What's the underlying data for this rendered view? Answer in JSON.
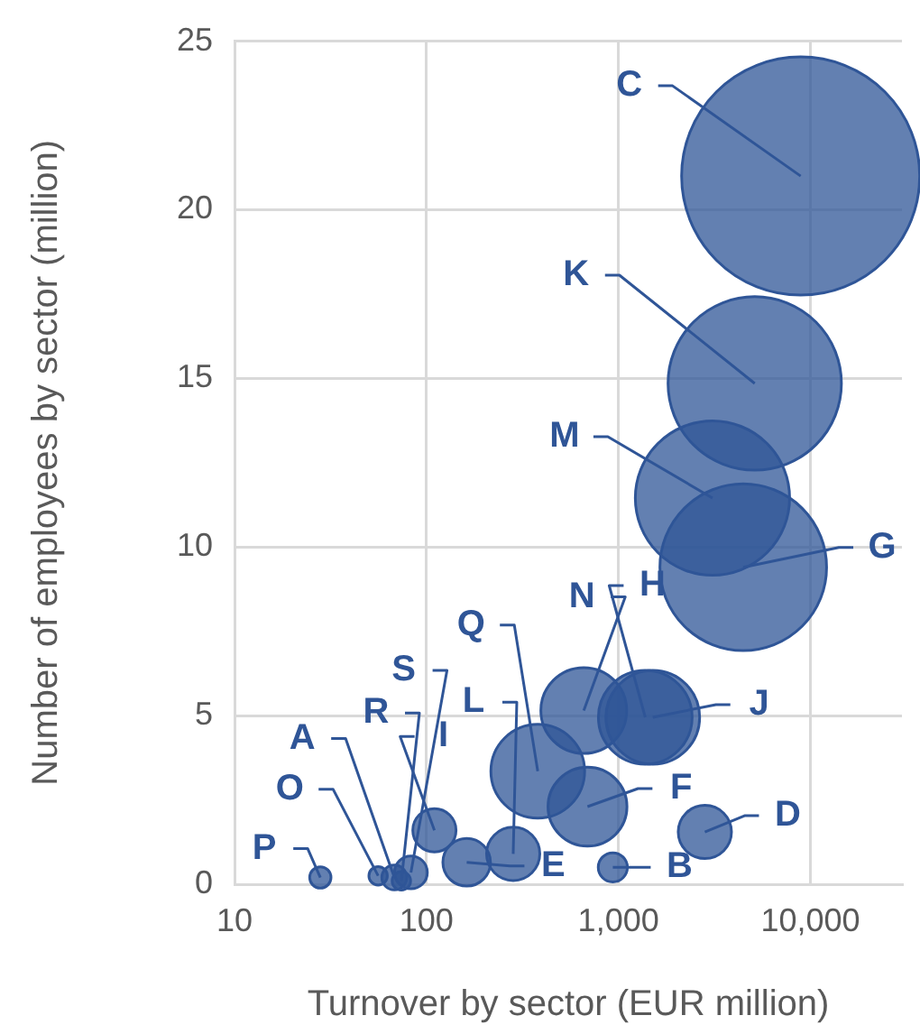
{
  "chart_data": {
    "type": "bubble",
    "xlabel": "Turnover by sector (EUR million)",
    "ylabel": "Number of employees by sector (million)",
    "x": [
      28,
      56,
      68,
      74,
      83,
      110,
      162,
      283,
      935,
      2820,
      380,
      690,
      660,
      1380,
      1510,
      4470,
      8900,
      5130,
      3090
    ],
    "series": [
      {
        "color": "#2f5597",
        "values": [
          0.2,
          0.25,
          0.2,
          0.1,
          0.35,
          1.6,
          0.65,
          0.9,
          0.5,
          1.55,
          3.35,
          2.3,
          5.15,
          4.95,
          4.95,
          9.4,
          21,
          14.85,
          11.45
        ],
        "sizes": [
          0.008,
          0.006,
          0.011,
          0.006,
          0.019,
          0.033,
          0.04,
          0.05,
          0.015,
          0.05,
          0.155,
          0.11,
          0.13,
          0.155,
          0.155,
          0.49,
          1,
          0.53,
          0.42
        ]
      }
    ],
    "annotations": [
      {
        "text": "P",
        "x": 28,
        "y": 0.2
      },
      {
        "text": "O",
        "x": 56,
        "y": 0.25
      },
      {
        "text": "A",
        "x": 68,
        "y": 0.2
      },
      {
        "text": "R",
        "x": 74,
        "y": 0.1
      },
      {
        "text": "S",
        "x": 83,
        "y": 0.35
      },
      {
        "text": "I",
        "x": 110,
        "y": 1.6
      },
      {
        "text": "E",
        "x": 162,
        "y": 0.65
      },
      {
        "text": "L",
        "x": 283,
        "y": 0.9
      },
      {
        "text": "B",
        "x": 935,
        "y": 0.5
      },
      {
        "text": "D",
        "x": 2820,
        "y": 1.55
      },
      {
        "text": "Q",
        "x": 380,
        "y": 3.35
      },
      {
        "text": "F",
        "x": 690,
        "y": 2.3
      },
      {
        "text": "N",
        "x": 660,
        "y": 5.15
      },
      {
        "text": "H",
        "x": 1380,
        "y": 4.95
      },
      {
        "text": "J",
        "x": 1510,
        "y": 4.95
      },
      {
        "text": "G",
        "x": 4470,
        "y": 9.4
      },
      {
        "text": "C",
        "x": 8900,
        "y": 21
      },
      {
        "text": "K",
        "x": 5130,
        "y": 14.85
      },
      {
        "text": "M",
        "x": 3090,
        "y": 11.45
      }
    ],
    "log": "x",
    "xlim": [
      10,
      30000
    ],
    "xticks": [
      10,
      100,
      {
        "value": 1000,
        "label": "1,000"
      },
      {
        "value": 10000,
        "label": "10,000"
      }
    ],
    "ylim": [
      0,
      25
    ],
    "yticks": [
      0,
      5,
      10,
      15,
      20,
      25
    ],
    "grid": true
  }
}
